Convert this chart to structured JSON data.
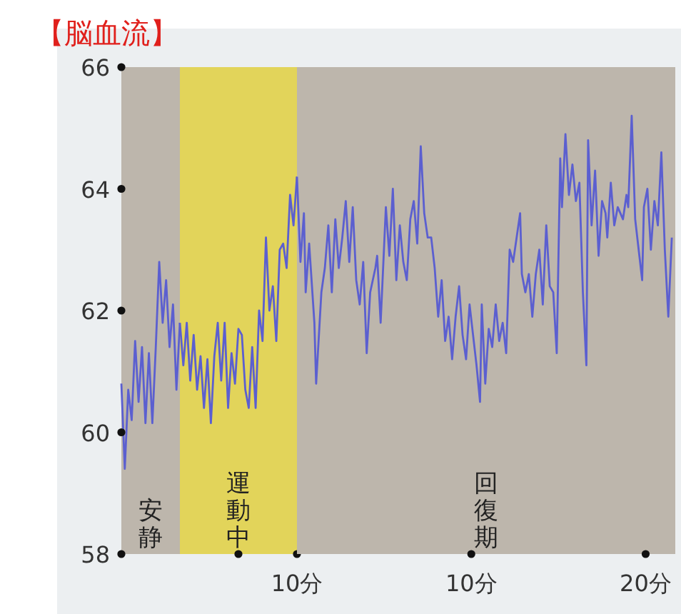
{
  "chart_data": [
    {
      "type": "line",
      "title": "【脳血流】",
      "ylim": [
        58,
        66
      ],
      "yticks": [
        58,
        60,
        62,
        64,
        66
      ],
      "categories": [
        null,
        null,
        null,
        null,
        null,
        null,
        null,
        null,
        null,
        null,
        null,
        null,
        null,
        null,
        null,
        null,
        null,
        null
      ],
      "annotations": [
        "安静"
      ],
      "series": [
        {
          "color": "#5b5fd0",
          "values": [
            60.8,
            59.4,
            60.7,
            60.2,
            61.5,
            60.5,
            61.4,
            60.15,
            61.3,
            60.15,
            61.4,
            62.8,
            61.8,
            62.5,
            61.4,
            62.1,
            60.7,
            61.8
          ]
        }
      ]
    },
    {
      "type": "line",
      "tick_labels": "x",
      "ylim": [
        58,
        66
      ],
      "categories": [
        null,
        null,
        null,
        null,
        null,
        null,
        null,
        null,
        null,
        null,
        null,
        null,
        null,
        null,
        null,
        null,
        null,
        null,
        null,
        null,
        null,
        null,
        null,
        null,
        null,
        null,
        null,
        null,
        null,
        null,
        null,
        null,
        null,
        null,
        null
      ],
      "annotations": [
        "運動中",
        "10分"
      ],
      "series": [
        {
          "color": "#5b5fd0",
          "values": [
            61.8,
            61.1,
            61.8,
            60.85,
            61.6,
            60.7,
            61.25,
            60.4,
            61.2,
            60.15,
            61.25,
            61.8,
            60.85,
            61.8,
            60.4,
            61.3,
            60.8,
            61.7,
            61.6,
            60.7,
            60.4,
            61.4,
            60.4,
            62.0,
            61.5,
            63.2,
            62.0,
            62.4,
            61.5,
            63.0,
            63.1,
            62.7,
            63.9,
            63.4,
            64.2
          ]
        }
      ]
    },
    {
      "type": "line",
      "tick_labels": "x",
      "xlim": [
        0,
        21.7
      ],
      "ylim": [
        58,
        66
      ],
      "xticks": [
        {
          "value": 10,
          "label": "10分"
        },
        {
          "value": 20,
          "label": "20分"
        }
      ],
      "bands": [
        {
          "axis": "x",
          "from": 0,
          "to": 21.7,
          "label": "回復期",
          "color": "#bdb6ac"
        }
      ],
      "series": [
        {
          "color": "#5b5fd0",
          "x": [
            0,
            0.2,
            0.4,
            0.5,
            0.7,
            1.0,
            1.1,
            1.4,
            1.6,
            1.8,
            2.0,
            2.2,
            2.4,
            2.6,
            2.8,
            3.0,
            3.2,
            3.4,
            3.6,
            3.8,
            4.0,
            4.2,
            4.5,
            4.6,
            4.8,
            5.1,
            5.3,
            5.5,
            5.7,
            5.9,
            6.1,
            6.3,
            6.5,
            6.7,
            6.9,
            7.1,
            7.3,
            7.5,
            7.7,
            7.9,
            8.1,
            8.3,
            8.5,
            8.7,
            8.9,
            9.1,
            9.3,
            9.5,
            9.7,
            9.9,
            10.1,
            10.3,
            10.5,
            10.6,
            10.8,
            11.0,
            11.2,
            11.4,
            11.6,
            11.8,
            12.0,
            12.2,
            12.4,
            12.6,
            12.8,
            12.9,
            13.1,
            13.3,
            13.5,
            13.7,
            13.9,
            14.1,
            14.3,
            14.5,
            14.7,
            14.9,
            15.1,
            15.2,
            15.4,
            15.6,
            15.8,
            16.0,
            16.2,
            16.4,
            16.6,
            16.7,
            16.9,
            17.1,
            17.3,
            17.5,
            17.7,
            17.8,
            18.0,
            18.2,
            18.4,
            18.7,
            18.9,
            19.0,
            19.2,
            19.4,
            19.6,
            19.8,
            19.9,
            20.1,
            20.3,
            20.5,
            20.7,
            20.9,
            21.1,
            21.3,
            21.5
          ],
          "values": [
            64.2,
            62.8,
            63.6,
            62.3,
            63.1,
            61.8,
            60.8,
            62.3,
            62.7,
            63.4,
            62.3,
            63.5,
            62.7,
            63.2,
            63.8,
            62.8,
            63.7,
            62.5,
            62.1,
            62.8,
            61.3,
            62.3,
            62.7,
            62.9,
            61.8,
            63.7,
            62.9,
            64.0,
            62.5,
            63.4,
            62.8,
            62.5,
            63.5,
            63.8,
            63.1,
            64.7,
            63.6,
            63.2,
            63.2,
            62.7,
            61.9,
            62.5,
            61.5,
            61.9,
            61.2,
            61.9,
            62.4,
            61.6,
            61.2,
            62.1,
            61.6,
            61.1,
            60.5,
            62.1,
            60.8,
            61.7,
            61.4,
            62.1,
            61.5,
            61.8,
            61.3,
            63.0,
            62.8,
            63.2,
            63.6,
            62.6,
            62.3,
            62.6,
            61.9,
            62.6,
            63.0,
            62.1,
            63.4,
            62.4,
            62.3,
            61.3,
            64.5,
            63.7,
            64.9,
            63.9,
            64.4,
            63.8,
            64.1,
            62.3,
            61.1,
            64.8,
            63.4,
            64.3,
            62.9,
            63.8,
            63.6,
            63.2,
            64.1,
            63.4,
            63.7,
            63.5,
            63.9,
            63.7,
            65.2,
            63.5,
            63.0,
            62.5,
            63.7,
            64.0,
            63.0,
            63.8,
            63.4,
            64.6,
            63.0,
            61.9,
            63.2
          ]
        }
      ]
    }
  ]
}
